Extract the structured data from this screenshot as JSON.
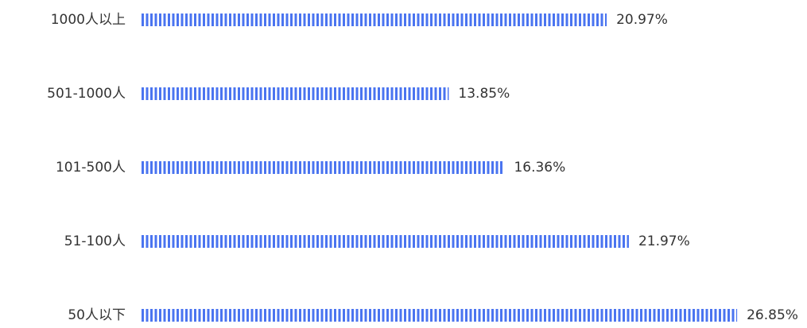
{
  "chart_data": {
    "type": "bar",
    "orientation": "horizontal",
    "categories": [
      "1000人以上",
      "501-1000人",
      "101-500人",
      "51-100人",
      "50人以下"
    ],
    "values": [
      20.97,
      13.85,
      16.36,
      21.97,
      26.85
    ],
    "value_labels": [
      "20.97%",
      "13.85%",
      "16.36%",
      "21.97%",
      "26.85%"
    ],
    "color": "#4a74f0"
  }
}
